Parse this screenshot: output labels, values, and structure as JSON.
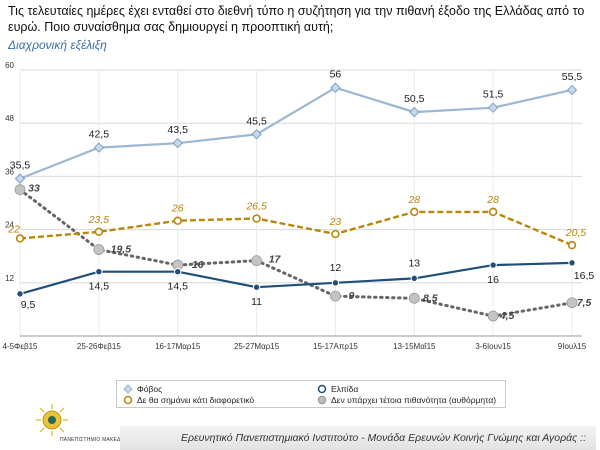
{
  "question": "Τις τελευταίες ημέρες έχει ενταθεί στο διεθνή τύπο η συζήτηση για την πιθανή έξοδο της Ελλάδας από το ευρώ. Ποιο συναίσθημα σας δημιουργεί η προοπτική αυτή;",
  "subtitle": "Διαχρονική εξέλιξη",
  "footer": "Ερευνητικό Πανεπιστημιακό Ινστιτούτο - Μονάδα Ερευνών Κοινής Γνώμης και Αγοράς ::",
  "logo_text": "ΠΑΝΕΠΙΣΤΗΜΙΟ ΜΑΚΕΔΟΝΙΑΣ",
  "chart_data": {
    "type": "line",
    "categories": [
      "4-5Φεβ15",
      "25-26Φεβ15",
      "16-17Μαρ15",
      "25-27Μαρ15",
      "15-17Απρ15",
      "13-15Μαΐ15",
      "3-6Ιουν15",
      "9Ιουλ15"
    ],
    "ylim": [
      0,
      60
    ],
    "yticks": [
      0,
      12,
      24,
      36,
      48,
      60
    ],
    "ytick_labels": [
      "",
      "12",
      "24",
      "36",
      "48",
      "60"
    ],
    "grid": true,
    "series": [
      {
        "name": "Φόβος",
        "values": [
          35.5,
          42.5,
          43.5,
          45.5,
          56,
          50.5,
          51.5,
          55.5
        ],
        "labels": [
          "35,5",
          "42,5",
          "43,5",
          "45,5",
          "56",
          "50,5",
          "51,5",
          "55,5"
        ],
        "color": "#9bb7d4",
        "dash": false,
        "marker": "diamond",
        "label_style": "normal"
      },
      {
        "name": "Ελπίδα",
        "values": [
          9.5,
          14.5,
          14.5,
          11,
          12,
          13,
          16,
          16.5
        ],
        "labels": [
          "9,5",
          "14,5",
          "14,5",
          "11",
          "12",
          "13",
          "16",
          "16,5"
        ],
        "color": "#1f4e79",
        "dash": false,
        "marker": "circle",
        "label_style": "normal"
      },
      {
        "name": "Δε θα σημάνει κάτι διαφορετικό",
        "values": [
          22,
          23.5,
          26,
          26.5,
          23,
          28,
          28,
          20.5
        ],
        "labels": [
          "22",
          "23,5",
          "26",
          "26,5",
          "23",
          "28",
          "28",
          "20,5"
        ],
        "color": "#b8860b",
        "dash": true,
        "marker": "circle-open",
        "label_style": "italic-gold"
      },
      {
        "name": "Δεν υπάρχει τέτοια πιθανότητα (αυθόρμητα)",
        "values": [
          33,
          19.5,
          16,
          17,
          9,
          8.5,
          4.5,
          7.5
        ],
        "labels": [
          "33",
          "19,5",
          "16",
          "17",
          "9",
          "8,5",
          "4,5",
          "7,5"
        ],
        "color": "#666666",
        "dash": "dot",
        "marker": "circle-grey",
        "label_style": "bold-italic"
      }
    ]
  },
  "colors": {
    "fear": "#9bb7d4",
    "hope": "#1f4e79",
    "nothing": "#b8860b",
    "none": "#666666"
  }
}
